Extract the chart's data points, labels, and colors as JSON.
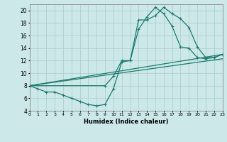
{
  "xlabel": "Humidex (Indice chaleur)",
  "xlim": [
    0,
    23
  ],
  "ylim": [
    4,
    21
  ],
  "xticks": [
    0,
    1,
    2,
    3,
    4,
    5,
    6,
    7,
    8,
    9,
    10,
    11,
    12,
    13,
    14,
    15,
    16,
    17,
    18,
    19,
    20,
    21,
    22,
    23
  ],
  "yticks": [
    4,
    6,
    8,
    10,
    12,
    14,
    16,
    18,
    20
  ],
  "bg_color": "#cce8e8",
  "grid_color": "#aacccc",
  "line_color": "#1a7a6e",
  "markersize": 3,
  "linewidth": 0.9,
  "line1_x": [
    0,
    1,
    2,
    3,
    4,
    5,
    6,
    7,
    8,
    9,
    10,
    11,
    12,
    13,
    14,
    15,
    16,
    17,
    18,
    19,
    20,
    21,
    22,
    23
  ],
  "line1_y": [
    8,
    7.5,
    7.0,
    7.0,
    6.5,
    6.0,
    5.5,
    5.0,
    4.8,
    5.0,
    7.5,
    11.8,
    12.0,
    18.5,
    18.5,
    19.2,
    20.5,
    19.5,
    18.7,
    17.3,
    14.2,
    12.5,
    12.5,
    13.0
  ],
  "line2_x": [
    0,
    9,
    10,
    11,
    12,
    13,
    14,
    15,
    16,
    17,
    18,
    19,
    20,
    21,
    22,
    23
  ],
  "line2_y": [
    8,
    8.0,
    9.5,
    12.0,
    12.0,
    17.0,
    19.0,
    20.5,
    19.5,
    17.5,
    14.2,
    14.0,
    12.5,
    12.3,
    12.5,
    13.0
  ],
  "line3_x": [
    0,
    23
  ],
  "line3_y": [
    8,
    13.0
  ],
  "line4_x": [
    0,
    23
  ],
  "line4_y": [
    8,
    12.3
  ]
}
